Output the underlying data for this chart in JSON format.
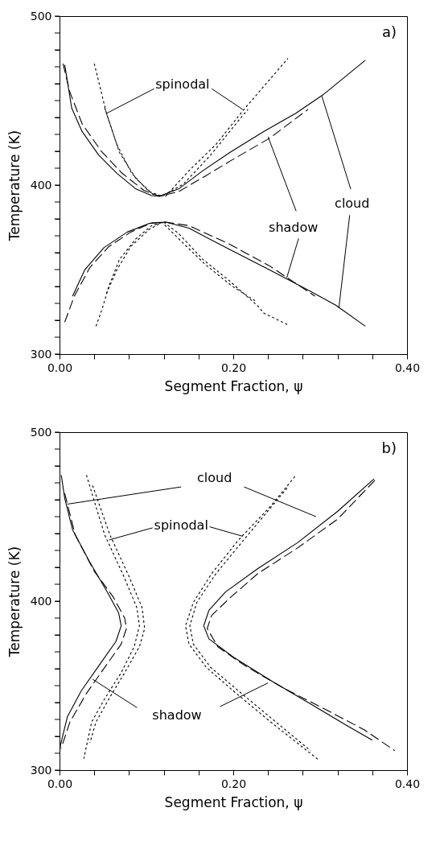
{
  "chart_data": [
    {
      "type": "line",
      "xlabel": "Segment Fraction, ψ",
      "ylabel": "Temperature (K)",
      "xlim": [
        0,
        0.4
      ],
      "ylim": [
        300,
        500
      ],
      "grid": false,
      "marker": "none",
      "xticks": [
        {
          "value": 0,
          "label": "0.00"
        },
        {
          "value": 0.04,
          "label": null
        },
        {
          "value": 0.08,
          "label": null
        },
        {
          "value": 0.12,
          "label": null
        },
        {
          "value": 0.16,
          "label": null
        },
        {
          "value": 0.2,
          "label": "0.20"
        },
        {
          "value": 0.24,
          "label": null
        },
        {
          "value": 0.28,
          "label": null
        },
        {
          "value": 0.32,
          "label": null
        },
        {
          "value": 0.36,
          "label": null
        },
        {
          "value": 0.4,
          "label": "0.40"
        }
      ],
      "yticks": [
        300,
        {
          "value": 310,
          "label": null
        },
        {
          "value": 320,
          "label": null
        },
        {
          "value": 330,
          "label": null
        },
        {
          "value": 340,
          "label": null
        },
        {
          "value": 350,
          "label": null
        },
        {
          "value": 360,
          "label": null
        },
        {
          "value": 370,
          "label": null
        },
        {
          "value": 380,
          "label": null
        },
        {
          "value": 390,
          "label": null
        },
        400,
        {
          "value": 410,
          "label": null
        },
        {
          "value": 420,
          "label": null
        },
        {
          "value": 430,
          "label": null
        },
        {
          "value": 440,
          "label": null
        },
        {
          "value": 450,
          "label": null
        },
        {
          "value": 460,
          "label": null
        },
        {
          "value": 470,
          "label": null
        },
        {
          "value": 480,
          "label": null
        },
        {
          "value": 490,
          "label": null
        },
        500
      ],
      "annotations": [
        "a)",
        {
          "text": "spinodal",
          "x": 0.054,
          "y": 442.4
        },
        {
          "text": "shadow",
          "x": 0.24,
          "y": 428.6
        },
        {
          "text": "cloud",
          "x": 0.302,
          "y": 452.6
        }
      ],
      "series": [
        {
          "color": "#000000",
          "line_style": "solid",
          "x": [
            0.006,
            0.014,
            0.026,
            0.045,
            0.066,
            0.088,
            0.106,
            0.115,
            0.137,
            0.165,
            0.196,
            0.235,
            0.272,
            0.303,
            0.352
          ],
          "values": [
            471.1,
            445.6,
            431.7,
            417.8,
            407.0,
            397.7,
            393.8,
            393.4,
            397.7,
            408.5,
            419.3,
            431.7,
            442.5,
            453.3,
            473.9
          ]
        },
        {
          "color": "#000000",
          "line_style": "dashed",
          "x": [
            0.004,
            0.012,
            0.026,
            0.048,
            0.072,
            0.097,
            0.115,
            0.137,
            0.168,
            0.198,
            0.242,
            0.286
          ],
          "values": [
            471.9,
            454.9,
            436.3,
            420.1,
            407.0,
            396.9,
            393.4,
            396.1,
            405.4,
            414.7,
            427.8,
            444.8
          ]
        },
        {
          "color": "#000000",
          "line_style": "dotted",
          "x": [
            0.04,
            0.054,
            0.069,
            0.088,
            0.109,
            0.122,
            0.149,
            0.18,
            0.211,
            0.263
          ],
          "values": [
            471.9,
            442.5,
            419.3,
            403.9,
            393.8,
            393.4,
            408.5,
            424.0,
            444.0,
            475.0
          ]
        },
        {
          "color": "#000000",
          "line_style": "dotted",
          "x": [
            0.052,
            0.066,
            0.083,
            0.103,
            0.118,
            0.143,
            0.174,
            0.208,
            0.217
          ],
          "values": [
            445.6,
            424.0,
            407.0,
            396.1,
            393.4,
            400.8,
            417.8,
            439.4,
            444.8
          ]
        },
        {
          "color": "#000000",
          "line_style": "solid",
          "x": [
            0.015,
            0.029,
            0.051,
            0.078,
            0.103,
            0.122,
            0.149,
            0.195,
            0.242,
            0.288,
            0.318,
            0.352
          ],
          "values": [
            334.3,
            349.8,
            362.9,
            372.2,
            377.3,
            378.1,
            374.5,
            362.1,
            349.8,
            337.4,
            328.9,
            316.5
          ]
        },
        {
          "color": "#000000",
          "line_style": "dashed",
          "x": [
            0.006,
            0.017,
            0.035,
            0.057,
            0.082,
            0.106,
            0.122,
            0.149,
            0.195,
            0.242,
            0.294
          ],
          "values": [
            318.9,
            334.3,
            351.3,
            363.7,
            372.2,
            377.6,
            378.1,
            376.0,
            365.2,
            352.1,
            334.3
          ]
        },
        {
          "color": "#000000",
          "line_style": "dotted",
          "x": [
            0.042,
            0.049,
            0.057,
            0.069,
            0.088,
            0.106,
            0.12,
            0.137,
            0.165,
            0.195,
            0.229,
            0.235,
            0.263
          ],
          "values": [
            316.5,
            326.6,
            340.5,
            356.0,
            368.3,
            376.0,
            378.1,
            371.4,
            356.0,
            343.6,
            328.1,
            324.3,
            317.3
          ]
        },
        {
          "color": "#000000",
          "line_style": "dotted",
          "x": [
            0.054,
            0.066,
            0.082,
            0.103,
            0.118,
            0.137,
            0.168,
            0.198,
            0.226
          ],
          "values": [
            335.9,
            349.8,
            363.7,
            373.7,
            378.0,
            368.3,
            352.9,
            340.5,
            331.2
          ]
        }
      ]
    },
    {
      "type": "line",
      "xlabel": "Segment Fraction, ψ",
      "ylabel": "Temperature (K)",
      "xlim": [
        0,
        0.4
      ],
      "ylim": [
        300,
        500
      ],
      "grid": false,
      "marker": "none",
      "xticks": [
        {
          "value": 0,
          "label": "0.00"
        },
        {
          "value": 0.04,
          "label": null
        },
        {
          "value": 0.08,
          "label": null
        },
        {
          "value": 0.12,
          "label": null
        },
        {
          "value": 0.16,
          "label": null
        },
        {
          "value": 0.2,
          "label": "0.20"
        },
        {
          "value": 0.24,
          "label": null
        },
        {
          "value": 0.28,
          "label": null
        },
        {
          "value": 0.32,
          "label": null
        },
        {
          "value": 0.36,
          "label": null
        },
        {
          "value": 0.4,
          "label": "0.40"
        }
      ],
      "yticks": [
        300,
        {
          "value": 310,
          "label": null
        },
        {
          "value": 320,
          "label": null
        },
        {
          "value": 330,
          "label": null
        },
        {
          "value": 340,
          "label": null
        },
        {
          "value": 350,
          "label": null
        },
        {
          "value": 360,
          "label": null
        },
        {
          "value": 370,
          "label": null
        },
        {
          "value": 380,
          "label": null
        },
        {
          "value": 390,
          "label": null
        },
        400,
        {
          "value": 410,
          "label": null
        },
        {
          "value": 420,
          "label": null
        },
        {
          "value": 430,
          "label": null
        },
        {
          "value": 440,
          "label": null
        },
        {
          "value": 450,
          "label": null
        },
        {
          "value": 460,
          "label": null
        },
        {
          "value": 470,
          "label": null
        },
        {
          "value": 480,
          "label": null
        },
        {
          "value": 490,
          "label": null
        },
        500
      ],
      "annotations": [
        "b)",
        {
          "text": "cloud",
          "x": 0.009,
          "y": 457.4
        },
        {
          "text": "spinodal",
          "x": 0.057,
          "y": 436.2
        },
        {
          "text": "shadow",
          "x": 0.038,
          "y": 353.8
        }
      ],
      "series": [
        {
          "color": "#000000",
          "line_style": "solid",
          "x": [
            0.002,
            0.006,
            0.015,
            0.034,
            0.055,
            0.068,
            0.071,
            0.065,
            0.046,
            0.025,
            0.009,
            0.001,
            0.0
          ],
          "values": [
            474.6,
            460.8,
            442.3,
            423.8,
            405.4,
            393.1,
            385.4,
            376.2,
            362.3,
            346.9,
            331.5,
            314.6,
            308.5
          ]
        },
        {
          "color": "#000000",
          "line_style": "dashed",
          "x": [
            0.006,
            0.018,
            0.04,
            0.062,
            0.075,
            0.077,
            0.071,
            0.052,
            0.031,
            0.012,
            0.002
          ],
          "values": [
            463.8,
            439.2,
            417.7,
            402.3,
            390.0,
            383.8,
            374.6,
            360.8,
            345.4,
            328.5,
            313.1
          ]
        },
        {
          "color": "#000000",
          "line_style": "dotted",
          "x": [
            0.031,
            0.04,
            0.052,
            0.074,
            0.089,
            0.092,
            0.086,
            0.071,
            0.052,
            0.037,
            0.028
          ],
          "values": [
            474.6,
            459.2,
            439.2,
            414.6,
            396.2,
            385.4,
            373.1,
            357.7,
            342.3,
            328.5,
            306.9
          ]
        },
        {
          "color": "#000000",
          "line_style": "dotted",
          "x": [
            0.038,
            0.058,
            0.08,
            0.095,
            0.098,
            0.092,
            0.075,
            0.057,
            0.042,
            0.035
          ],
          "values": [
            468.5,
            439.2,
            414.6,
            396.2,
            383.8,
            373.1,
            357.7,
            342.3,
            328.5,
            316.2
          ]
        },
        {
          "color": "#000000",
          "line_style": "solid",
          "x": [
            0.362,
            0.32,
            0.274,
            0.228,
            0.191,
            0.172,
            0.166,
            0.172,
            0.2,
            0.243,
            0.289,
            0.329,
            0.36
          ],
          "values": [
            472.3,
            453.1,
            434.6,
            419.2,
            405.4,
            394.6,
            385.4,
            377.7,
            366.9,
            353.1,
            339.2,
            326.9,
            317.7
          ]
        },
        {
          "color": "#000000",
          "line_style": "dashed",
          "x": [
            0.363,
            0.32,
            0.274,
            0.228,
            0.197,
            0.175,
            0.17,
            0.182,
            0.212,
            0.258,
            0.305,
            0.351,
            0.386
          ],
          "values": [
            471.5,
            448.5,
            431.5,
            416.2,
            402.3,
            391.5,
            383.8,
            373.1,
            362.3,
            348.5,
            336.2,
            323.8,
            311.5
          ]
        },
        {
          "color": "#000000",
          "line_style": "dotted",
          "x": [
            0.271,
            0.243,
            0.206,
            0.175,
            0.154,
            0.145,
            0.149,
            0.169,
            0.2,
            0.243,
            0.298
          ],
          "values": [
            473.8,
            456.2,
            436.2,
            416.2,
            399.2,
            385.4,
            374.6,
            360.8,
            346.9,
            328.5,
            306.2
          ]
        },
        {
          "color": "#000000",
          "line_style": "dotted",
          "x": [
            0.262,
            0.212,
            0.18,
            0.158,
            0.15,
            0.154,
            0.174,
            0.206,
            0.249,
            0.289
          ],
          "values": [
            466.9,
            436.2,
            416.2,
            399.2,
            385.4,
            374.6,
            360.8,
            346.9,
            328.5,
            311.5
          ]
        }
      ]
    }
  ]
}
